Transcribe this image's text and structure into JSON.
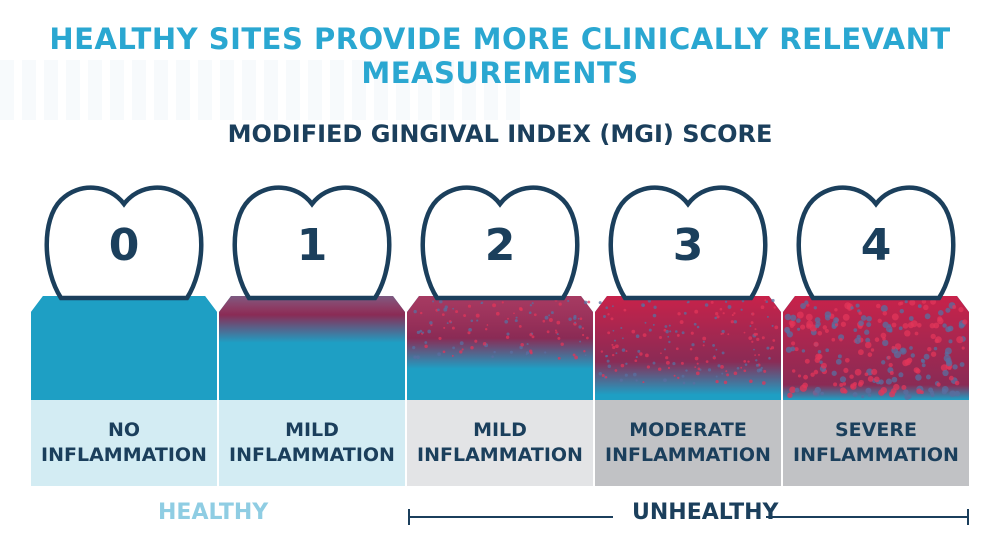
{
  "title": "HEALTHY SITES PROVIDE MORE CLINICALLY RELEVANT MEASUREMENTS",
  "subtitle": "MODIFIED GINGIVAL INDEX (MGI) SCORE",
  "colors": {
    "title": "#2aa7d1",
    "dark": "#1b3f5c",
    "gum_healthy": "#1e9fc4",
    "gum_inflamed": "#c8224a",
    "label_light_blue": "#d3ecf3",
    "label_light_gray": "#e3e4e6",
    "label_gray": "#c1c2c5",
    "healthy_text": "#8fcde3"
  },
  "scores": [
    {
      "score": "0",
      "label": "NO\nINFLAMMATION",
      "inflammation_level": 0.0
    },
    {
      "score": "1",
      "label": "MILD\nINFLAMMATION",
      "inflammation_level": 0.2
    },
    {
      "score": "2",
      "label": "MILD\nINFLAMMATION",
      "inflammation_level": 0.45
    },
    {
      "score": "3",
      "label": "MODERATE\nINFLAMMATION",
      "inflammation_level": 0.7
    },
    {
      "score": "4",
      "label": "SEVERE\nINFLAMMATION",
      "inflammation_level": 0.95
    }
  ],
  "footer": {
    "healthy": "HEALTHY",
    "unhealthy": "UNHEALTHY"
  }
}
